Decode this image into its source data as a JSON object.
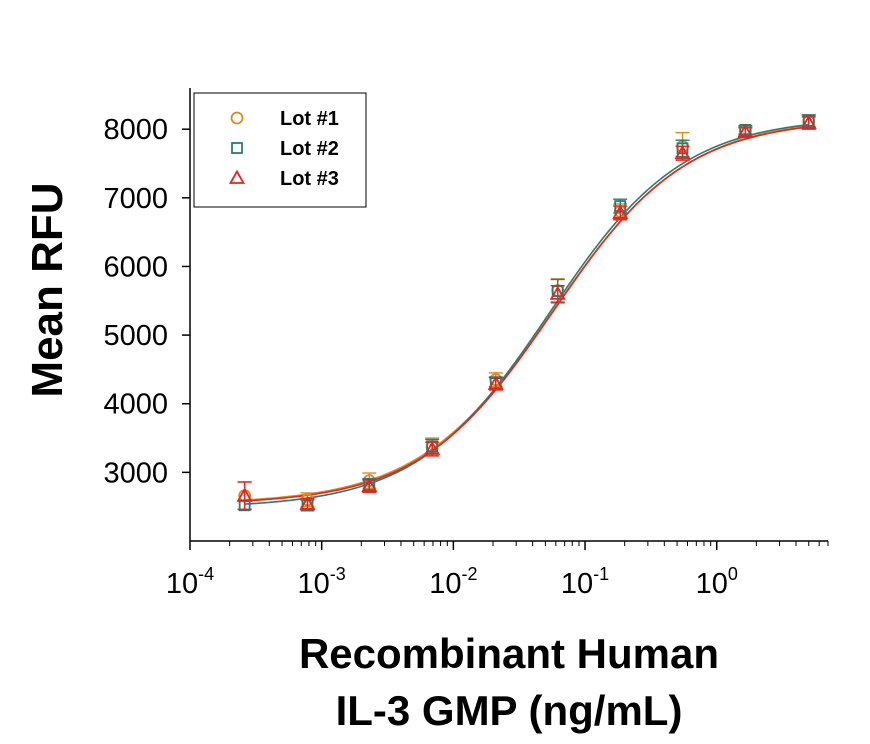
{
  "chart_data": {
    "type": "scatter",
    "title": "",
    "xlabel_lines": [
      "Recombinant Human",
      "IL-3 GMP (ng/mL)"
    ],
    "ylabel": "Mean RFU",
    "x_scale": "log",
    "xlim": [
      0.0001,
      7
    ],
    "ylim": [
      2000,
      8600
    ],
    "x_tick_labels": [
      {
        "value": 0.0001,
        "base": "10",
        "exp": "-4"
      },
      {
        "value": 0.001,
        "base": "10",
        "exp": "-3"
      },
      {
        "value": 0.01,
        "base": "10",
        "exp": "-2"
      },
      {
        "value": 0.1,
        "base": "10",
        "exp": "-1"
      },
      {
        "value": 1,
        "base": "10",
        "exp": "0"
      }
    ],
    "y_ticks": [
      3000,
      4000,
      5000,
      6000,
      7000,
      8000
    ],
    "y_tick_labels": [
      "3000",
      "4000",
      "5000",
      "6000",
      "7000",
      "8000"
    ],
    "grid": false,
    "legend_position": "top-left",
    "x": [
      0.00026,
      0.00078,
      0.0023,
      0.0069,
      0.021,
      0.062,
      0.185,
      0.55,
      1.65,
      5.0
    ],
    "series": [
      {
        "name": "Lot #1",
        "marker": "circle",
        "color": "#d98c1f",
        "values": [
          2660,
          2600,
          2880,
          3370,
          4350,
          5650,
          6800,
          7750,
          7980,
          8110
        ],
        "errors": [
          200,
          100,
          110,
          130,
          100,
          170,
          110,
          200,
          60,
          90
        ],
        "fit": {
          "bottom": 2540,
          "top": 8170,
          "ec50": 0.057,
          "hill": 0.85
        }
      },
      {
        "name": "Lot #2",
        "marker": "square",
        "color": "#2b7a78",
        "values": [
          2520,
          2520,
          2820,
          3380,
          4300,
          5640,
          6880,
          7720,
          7990,
          8120
        ],
        "errors": [
          60,
          80,
          90,
          100,
          90,
          170,
          100,
          120,
          60,
          90
        ],
        "fit": {
          "bottom": 2480,
          "top": 8180,
          "ec50": 0.054,
          "hill": 0.86
        }
      },
      {
        "name": "Lot #3",
        "marker": "triangle",
        "color": "#e52420",
        "values": [
          2660,
          2540,
          2800,
          3340,
          4290,
          5600,
          6780,
          7650,
          7960,
          8090
        ],
        "errors": [
          200,
          80,
          90,
          100,
          90,
          120,
          100,
          100,
          60,
          90
        ],
        "fit": {
          "bottom": 2530,
          "top": 8150,
          "ec50": 0.057,
          "hill": 0.86
        }
      }
    ]
  }
}
